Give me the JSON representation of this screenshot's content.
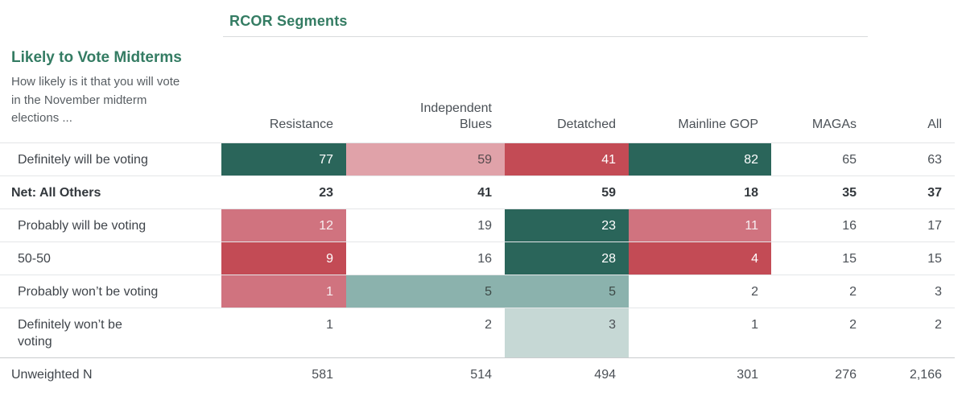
{
  "header": {
    "table_title": "RCOR Segments",
    "question_title": "Likely to Vote Midterms",
    "question_subtitle": "How likely is it that you will vote in the November midterm elections ..."
  },
  "colors": {
    "accent_green_title": "#347c63",
    "cell_dark_green": "#2a655a",
    "cell_red": "#c34b55",
    "cell_rose": "#d0737f",
    "cell_light_pink": "#e0a2a9",
    "cell_teal": "#8bb2ad",
    "cell_light_teal": "#c6d8d5"
  },
  "chart_data": {
    "type": "table",
    "title": "RCOR Segments",
    "row_group_title": "Likely to Vote Midterms",
    "question": "How likely is it that you will vote in the November midterm elections ...",
    "columns": [
      "Resistance",
      "Independent Blues",
      "Detatched",
      "Mainline GOP",
      "MAGAs",
      "All"
    ],
    "rows": [
      {
        "label": "Definitely will be voting",
        "values": [
          77,
          59,
          41,
          82,
          65,
          63
        ]
      },
      {
        "label": "Net: All Others",
        "values": [
          23,
          41,
          59,
          18,
          35,
          37
        ]
      },
      {
        "label": "Probably will be voting",
        "values": [
          12,
          19,
          23,
          11,
          16,
          17
        ]
      },
      {
        "label": "50-50",
        "values": [
          9,
          16,
          28,
          4,
          15,
          15
        ]
      },
      {
        "label": "Probably won’t be voting",
        "values": [
          1,
          5,
          5,
          2,
          2,
          3
        ]
      },
      {
        "label": "Definitely won’t be voting",
        "values": [
          1,
          2,
          3,
          1,
          2,
          2
        ]
      },
      {
        "label": "Unweighted N",
        "values": [
          581,
          514,
          494,
          301,
          276,
          2166
        ]
      }
    ]
  },
  "table": {
    "columns": [
      "Resistance",
      "Independent Blues",
      "Detatched",
      "Mainline GOP",
      "MAGAs",
      "All"
    ],
    "rows": [
      {
        "label": "Definitely will be voting",
        "indent": true,
        "cells": [
          {
            "v": "77",
            "hl": "green"
          },
          {
            "v": "59",
            "hl": "pink"
          },
          {
            "v": "41",
            "hl": "red"
          },
          {
            "v": "82",
            "hl": "green"
          },
          {
            "v": "65"
          },
          {
            "v": "63"
          }
        ]
      },
      {
        "label": "Net: All Others",
        "bold": true,
        "cells": [
          {
            "v": "23"
          },
          {
            "v": "41"
          },
          {
            "v": "59"
          },
          {
            "v": "18"
          },
          {
            "v": "35"
          },
          {
            "v": "37"
          }
        ]
      },
      {
        "label": "Probably will be voting",
        "indent": true,
        "cells": [
          {
            "v": "12",
            "hl": "rose"
          },
          {
            "v": "19"
          },
          {
            "v": "23",
            "hl": "green"
          },
          {
            "v": "11",
            "hl": "rose"
          },
          {
            "v": "16"
          },
          {
            "v": "17"
          }
        ]
      },
      {
        "label": "50-50",
        "indent": true,
        "cells": [
          {
            "v": "9",
            "hl": "red"
          },
          {
            "v": "16"
          },
          {
            "v": "28",
            "hl": "green"
          },
          {
            "v": "4",
            "hl": "red"
          },
          {
            "v": "15"
          },
          {
            "v": "15"
          }
        ]
      },
      {
        "label": "Probably won’t be voting",
        "indent": true,
        "cells": [
          {
            "v": "1",
            "hl": "rose"
          },
          {
            "v": "5",
            "hl": "teal"
          },
          {
            "v": "5",
            "hl": "teal"
          },
          {
            "v": "2"
          },
          {
            "v": "2"
          },
          {
            "v": "3"
          }
        ]
      },
      {
        "label": "Definitely won’t be voting",
        "indent": true,
        "cells": [
          {
            "v": "1"
          },
          {
            "v": "2"
          },
          {
            "v": "3",
            "hl": "teal-light"
          },
          {
            "v": "1"
          },
          {
            "v": "2"
          },
          {
            "v": "2"
          }
        ]
      },
      {
        "label": "Unweighted N",
        "cells": [
          {
            "v": "581"
          },
          {
            "v": "514"
          },
          {
            "v": "494"
          },
          {
            "v": "301"
          },
          {
            "v": "276"
          },
          {
            "v": "2,166"
          }
        ]
      }
    ]
  }
}
